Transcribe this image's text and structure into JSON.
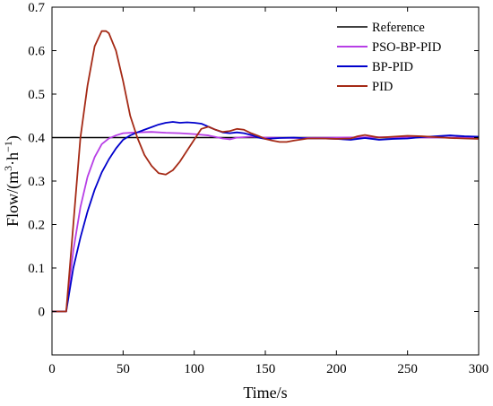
{
  "chart_data": {
    "type": "line",
    "title": "",
    "xlabel": "Time/s",
    "ylabel": {
      "prefix": "Flow/(m",
      "sup1": "3",
      "middle": "·h",
      "sup2": "−1",
      "suffix": ")"
    },
    "xlim": [
      0,
      300
    ],
    "ylim": [
      -0.1,
      0.7
    ],
    "xticks": [
      0,
      50,
      100,
      150,
      200,
      250,
      300
    ],
    "xtick_labels": [
      "0",
      "50",
      "100",
      "150",
      "200",
      "250",
      "300"
    ],
    "yticks": [
      0,
      0.1,
      0.2,
      0.3,
      0.4,
      0.5,
      0.6,
      0.7
    ],
    "ytick_labels": [
      "0",
      "0.1",
      "0.2",
      "0.3",
      "0.4",
      "0.5",
      "0.6",
      "0.7"
    ],
    "grid": false,
    "legend_position": "top-right",
    "series": [
      {
        "name": "Reference",
        "color": "#000000",
        "points": [
          [
            0,
            0.4
          ],
          [
            300,
            0.4
          ]
        ]
      },
      {
        "name": "PSO-BP-PID",
        "color": "#b73fe6",
        "points": [
          [
            0,
            0
          ],
          [
            10,
            0
          ],
          [
            12,
            0.06
          ],
          [
            15,
            0.14
          ],
          [
            20,
            0.24
          ],
          [
            25,
            0.31
          ],
          [
            30,
            0.355
          ],
          [
            35,
            0.385
          ],
          [
            40,
            0.398
          ],
          [
            45,
            0.405
          ],
          [
            50,
            0.41
          ],
          [
            60,
            0.412
          ],
          [
            70,
            0.413
          ],
          [
            80,
            0.411
          ],
          [
            90,
            0.41
          ],
          [
            100,
            0.408
          ],
          [
            110,
            0.405
          ],
          [
            120,
            0.398
          ],
          [
            125,
            0.396
          ],
          [
            130,
            0.4
          ],
          [
            140,
            0.402
          ],
          [
            150,
            0.4
          ],
          [
            170,
            0.399
          ],
          [
            200,
            0.4
          ],
          [
            230,
            0.401
          ],
          [
            260,
            0.4
          ],
          [
            300,
            0.4
          ]
        ]
      },
      {
        "name": "BP-PID",
        "color": "#0000cc",
        "points": [
          [
            0,
            0
          ],
          [
            10,
            0
          ],
          [
            12,
            0.04
          ],
          [
            15,
            0.1
          ],
          [
            20,
            0.17
          ],
          [
            25,
            0.23
          ],
          [
            30,
            0.28
          ],
          [
            35,
            0.32
          ],
          [
            40,
            0.35
          ],
          [
            45,
            0.375
          ],
          [
            50,
            0.395
          ],
          [
            55,
            0.405
          ],
          [
            60,
            0.412
          ],
          [
            65,
            0.418
          ],
          [
            70,
            0.424
          ],
          [
            75,
            0.43
          ],
          [
            80,
            0.434
          ],
          [
            85,
            0.436
          ],
          [
            90,
            0.434
          ],
          [
            95,
            0.435
          ],
          [
            100,
            0.434
          ],
          [
            105,
            0.432
          ],
          [
            110,
            0.425
          ],
          [
            115,
            0.418
          ],
          [
            120,
            0.412
          ],
          [
            125,
            0.41
          ],
          [
            130,
            0.412
          ],
          [
            135,
            0.41
          ],
          [
            140,
            0.406
          ],
          [
            145,
            0.4
          ],
          [
            150,
            0.397
          ],
          [
            160,
            0.399
          ],
          [
            170,
            0.4
          ],
          [
            180,
            0.398
          ],
          [
            190,
            0.398
          ],
          [
            200,
            0.397
          ],
          [
            210,
            0.395
          ],
          [
            220,
            0.399
          ],
          [
            230,
            0.395
          ],
          [
            240,
            0.397
          ],
          [
            250,
            0.398
          ],
          [
            260,
            0.401
          ],
          [
            270,
            0.403
          ],
          [
            280,
            0.405
          ],
          [
            290,
            0.403
          ],
          [
            300,
            0.402
          ]
        ]
      },
      {
        "name": "PID",
        "color": "#a52a16",
        "points": [
          [
            0,
            0
          ],
          [
            10,
            0
          ],
          [
            12,
            0.08
          ],
          [
            15,
            0.2
          ],
          [
            18,
            0.32
          ],
          [
            20,
            0.4
          ],
          [
            25,
            0.52
          ],
          [
            30,
            0.61
          ],
          [
            35,
            0.645
          ],
          [
            38,
            0.645
          ],
          [
            40,
            0.64
          ],
          [
            45,
            0.6
          ],
          [
            50,
            0.53
          ],
          [
            55,
            0.45
          ],
          [
            60,
            0.4
          ],
          [
            65,
            0.36
          ],
          [
            70,
            0.335
          ],
          [
            75,
            0.318
          ],
          [
            80,
            0.315
          ],
          [
            85,
            0.325
          ],
          [
            90,
            0.345
          ],
          [
            95,
            0.37
          ],
          [
            100,
            0.395
          ],
          [
            105,
            0.42
          ],
          [
            110,
            0.425
          ],
          [
            115,
            0.418
          ],
          [
            120,
            0.413
          ],
          [
            125,
            0.415
          ],
          [
            130,
            0.42
          ],
          [
            135,
            0.418
          ],
          [
            140,
            0.41
          ],
          [
            145,
            0.404
          ],
          [
            150,
            0.397
          ],
          [
            155,
            0.393
          ],
          [
            160,
            0.39
          ],
          [
            165,
            0.39
          ],
          [
            170,
            0.393
          ],
          [
            180,
            0.398
          ],
          [
            190,
            0.398
          ],
          [
            200,
            0.397
          ],
          [
            210,
            0.398
          ],
          [
            215,
            0.403
          ],
          [
            220,
            0.406
          ],
          [
            225,
            0.403
          ],
          [
            230,
            0.4
          ],
          [
            240,
            0.402
          ],
          [
            250,
            0.404
          ],
          [
            260,
            0.403
          ],
          [
            270,
            0.401
          ],
          [
            280,
            0.399
          ],
          [
            290,
            0.398
          ],
          [
            300,
            0.397
          ]
        ]
      }
    ]
  }
}
